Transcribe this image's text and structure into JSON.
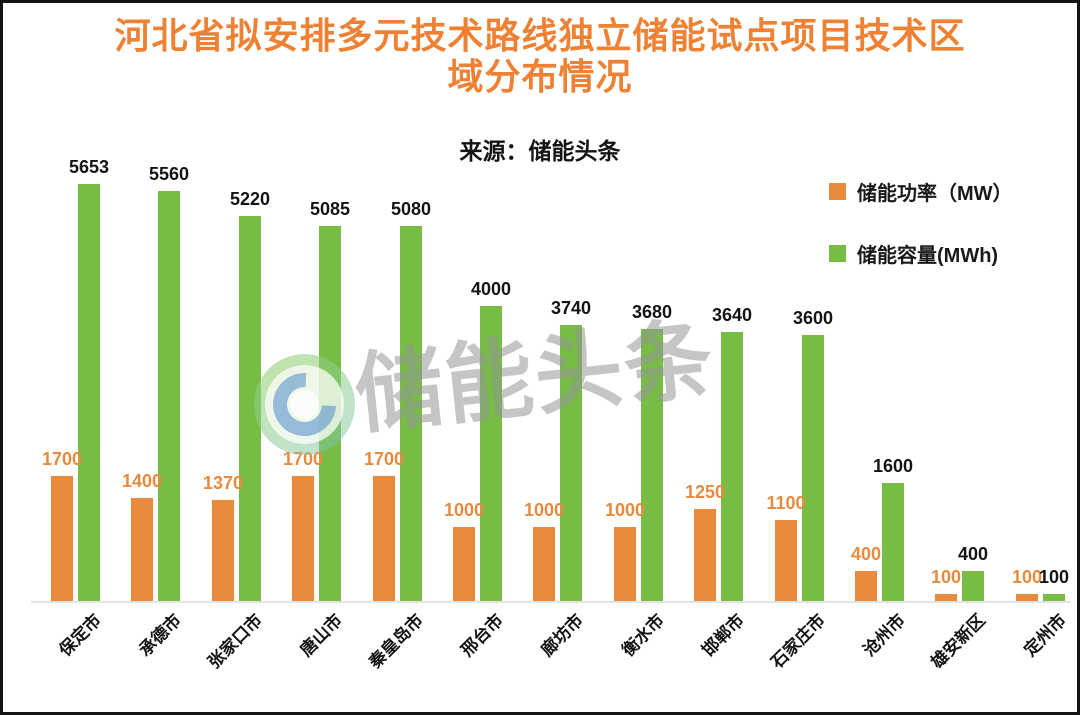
{
  "title_line1": "河北省拟安排多元技术路线独立储能试点项目技术区",
  "title_line2": "域分布情况",
  "subtitle": "来源：储能头条",
  "watermark": {
    "text": "储能头条"
  },
  "colors": {
    "title": "#EE8133",
    "power": "#E98A3D",
    "capacity": "#77BC45",
    "capacity_label": "#141414",
    "power_label": "#E98A3D"
  },
  "legend": {
    "items": [
      {
        "label": "储能功率（MW）",
        "color": "#E98A3D"
      },
      {
        "label": "储能容量(MWh)",
        "color": "#77BC45"
      }
    ]
  },
  "chart_data": {
    "type": "bar",
    "title": "河北省拟安排多元技术路线独立储能试点项目技术区域分布情况",
    "source": "来源：储能头条",
    "categories": [
      "保定市",
      "承德市",
      "张家口市",
      "唐山市",
      "秦皇岛市",
      "邢台市",
      "廊坊市",
      "衡水市",
      "邯郸市",
      "石家庄市",
      "沧州市",
      "雄安新区",
      "定州市"
    ],
    "series": [
      {
        "name": "储能功率（MW）",
        "color": "#E98A3D",
        "values": [
          1700,
          1400,
          1370,
          1700,
          1700,
          1000,
          1000,
          1000,
          1250,
          1100,
          400,
          100,
          100
        ]
      },
      {
        "name": "储能容量(MWh)",
        "color": "#77BC45",
        "values": [
          5653,
          5560,
          5220,
          5085,
          5080,
          4000,
          3740,
          3680,
          3640,
          3600,
          1600,
          400,
          100
        ]
      }
    ],
    "xlabel": "",
    "ylabel": "",
    "ylim": [
      0,
      5700
    ],
    "grid": false,
    "y_axis_visible": false,
    "bar_labels": true,
    "x_tick_rotation": 45,
    "legend_position": "top-right"
  }
}
